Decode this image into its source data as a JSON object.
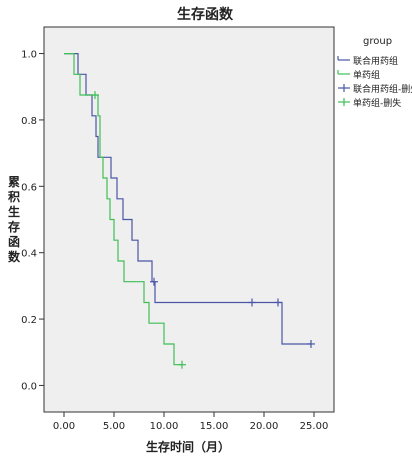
{
  "chart_data": {
    "type": "line",
    "title": "生存函数",
    "xlabel": "生存时间（月）",
    "ylabel": "累积生存函数",
    "xlim": [
      -2,
      27
    ],
    "ylim": [
      -0.08,
      1.08
    ],
    "xticks": [
      0,
      5,
      10,
      15,
      20,
      25
    ],
    "xtick_labels": [
      "0.00",
      "5.00",
      "10.00",
      "15.00",
      "20.00",
      "25.00"
    ],
    "yticks": [
      0.0,
      0.2,
      0.4,
      0.6,
      0.8,
      1.0
    ],
    "ytick_labels": [
      "0.0",
      "0.2",
      "0.4",
      "0.6",
      "0.8",
      "1.0"
    ],
    "grid": false,
    "plot_background": "#efefef",
    "legend_title": "group",
    "legend_position": "right",
    "legend": [
      {
        "label": "联合用药组",
        "color": "#4a56a6",
        "kind": "line"
      },
      {
        "label": "单药组",
        "color": "#3fbf56",
        "kind": "line"
      },
      {
        "label": "联合用药组-删失",
        "color": "#4a56a6",
        "kind": "censor"
      },
      {
        "label": "单药组-删失",
        "color": "#3fbf56",
        "kind": "censor"
      }
    ],
    "series": [
      {
        "name": "联合用药组",
        "color": "#4a56a6",
        "steps": [
          [
            0,
            1.0
          ],
          [
            1.4,
            0.9375
          ],
          [
            2.2,
            0.875
          ],
          [
            2.8,
            0.8125
          ],
          [
            3.2,
            0.75
          ],
          [
            3.4,
            0.6875
          ],
          [
            4.7,
            0.625
          ],
          [
            5.3,
            0.5625
          ],
          [
            5.9,
            0.5
          ],
          [
            6.8,
            0.4375
          ],
          [
            7.4,
            0.375
          ],
          [
            8.8,
            0.3125
          ],
          [
            9.1,
            0.25
          ],
          [
            21.8,
            0.125
          ],
          [
            24.7,
            0.125
          ]
        ],
        "censored": [
          [
            9.0,
            0.3125
          ],
          [
            18.8,
            0.25
          ],
          [
            21.4,
            0.25
          ],
          [
            24.7,
            0.125
          ]
        ]
      },
      {
        "name": "单药组",
        "color": "#3fbf56",
        "steps": [
          [
            0,
            1.0
          ],
          [
            1.0,
            0.9375
          ],
          [
            1.6,
            0.875
          ],
          [
            3.4,
            0.8125
          ],
          [
            3.6,
            0.6875
          ],
          [
            3.9,
            0.625
          ],
          [
            4.3,
            0.5625
          ],
          [
            4.6,
            0.5
          ],
          [
            5.0,
            0.4375
          ],
          [
            5.4,
            0.375
          ],
          [
            6.0,
            0.3125
          ],
          [
            8.0,
            0.25
          ],
          [
            8.5,
            0.1875
          ],
          [
            10.0,
            0.125
          ],
          [
            11.0,
            0.0625
          ],
          [
            11.8,
            0.0625
          ]
        ],
        "censored": [
          [
            3.1,
            0.875
          ],
          [
            11.8,
            0.0625
          ]
        ]
      }
    ]
  }
}
